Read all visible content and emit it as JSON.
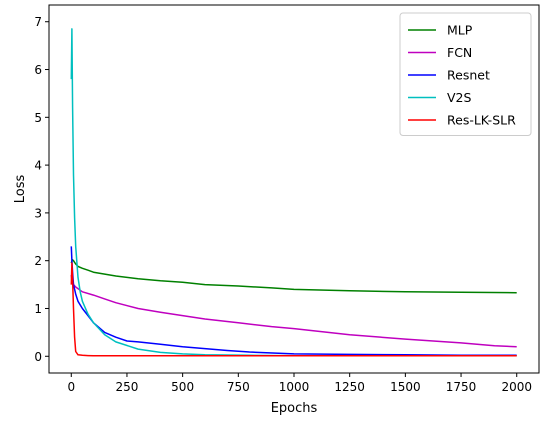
{
  "chart_data": {
    "type": "line",
    "xlabel": "Epochs",
    "ylabel": "Loss",
    "xlim": [
      -100,
      2100
    ],
    "ylim": [
      -0.35,
      7.35
    ],
    "xticks": [
      0,
      250,
      500,
      750,
      1000,
      1250,
      1500,
      1750,
      2000
    ],
    "yticks": [
      0,
      1,
      2,
      3,
      4,
      5,
      6,
      7
    ],
    "grid": false,
    "legend_position": "top-right",
    "series": [
      {
        "name": "MLP",
        "color": "#008000",
        "x": [
          0,
          5,
          10,
          20,
          30,
          50,
          75,
          100,
          150,
          200,
          300,
          400,
          500,
          600,
          750,
          900,
          1000,
          1250,
          1500,
          1750,
          2000
        ],
        "values": [
          1.95,
          2.02,
          2.0,
          1.93,
          1.88,
          1.84,
          1.8,
          1.76,
          1.72,
          1.68,
          1.62,
          1.58,
          1.55,
          1.5,
          1.47,
          1.43,
          1.4,
          1.37,
          1.35,
          1.34,
          1.33
        ]
      },
      {
        "name": "FCN",
        "color": "#bf00bf",
        "x": [
          0,
          5,
          10,
          20,
          50,
          100,
          150,
          200,
          300,
          400,
          500,
          600,
          750,
          900,
          1000,
          1250,
          1500,
          1750,
          1900,
          2000
        ],
        "values": [
          1.7,
          1.52,
          1.5,
          1.45,
          1.35,
          1.28,
          1.2,
          1.12,
          1.0,
          0.92,
          0.85,
          0.78,
          0.7,
          0.62,
          0.58,
          0.45,
          0.36,
          0.28,
          0.22,
          0.2
        ]
      },
      {
        "name": "Resnet",
        "color": "#0000ff",
        "x": [
          0,
          3,
          6,
          10,
          20,
          30,
          50,
          75,
          100,
          150,
          200,
          250,
          300,
          400,
          500,
          600,
          700,
          800,
          1000,
          1250,
          1500,
          1750,
          2000
        ],
        "values": [
          2.3,
          2.0,
          1.75,
          1.5,
          1.3,
          1.15,
          1.0,
          0.85,
          0.7,
          0.5,
          0.4,
          0.32,
          0.3,
          0.25,
          0.2,
          0.16,
          0.12,
          0.09,
          0.05,
          0.04,
          0.03,
          0.02,
          0.02
        ]
      },
      {
        "name": "V2S",
        "color": "#00bfbf",
        "x": [
          0,
          3,
          6,
          10,
          15,
          20,
          30,
          40,
          50,
          75,
          100,
          150,
          200,
          300,
          400,
          500,
          600,
          800,
          1000,
          1250,
          1500,
          2000
        ],
        "values": [
          5.8,
          6.85,
          5.2,
          3.8,
          2.9,
          2.3,
          1.65,
          1.35,
          1.15,
          0.88,
          0.7,
          0.45,
          0.3,
          0.15,
          0.08,
          0.05,
          0.03,
          0.02,
          0.01,
          0.01,
          0.01,
          0.01
        ]
      },
      {
        "name": "Res-LK-SLR",
        "color": "#ff0000",
        "x": [
          0,
          3,
          6,
          10,
          15,
          20,
          30,
          50,
          75,
          100,
          250,
          500,
          1000,
          1500,
          2000
        ],
        "values": [
          1.5,
          1.95,
          1.6,
          1.0,
          0.4,
          0.1,
          0.03,
          0.02,
          0.015,
          0.01,
          0.01,
          0.01,
          0.01,
          0.01,
          0.01
        ]
      }
    ]
  }
}
